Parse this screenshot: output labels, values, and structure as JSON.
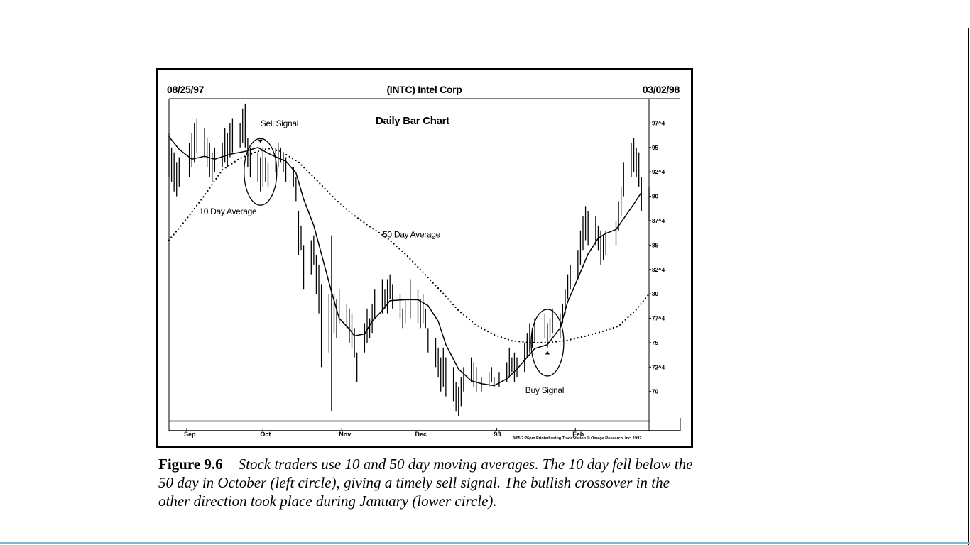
{
  "header": {
    "date_left": "08/25/97",
    "title": "(INTC) Intel Corp",
    "date_right": "03/02/98"
  },
  "caption": {
    "figure_label": "Figure 9.6",
    "text": "Stock traders use 10  and 50 day moving averages. The 10 day fell below the 50 day in October (left circle), giving a timely sell signal. The bullish crossover in the other direction took place during January (lower circle)."
  },
  "colors": {
    "ink": "#000000",
    "background": "#ffffff",
    "bottom_rule": "#7fb8cf"
  },
  "chart_data": {
    "type": "bar",
    "subtitle": "Daily Bar Chart",
    "x_tick_labels": [
      "Sep",
      "Oct",
      "Nov",
      "Dec",
      "98",
      "Feb"
    ],
    "y_tick_labels": [
      "97^4",
      "95",
      "92^4",
      "90",
      "87^4",
      "85",
      "82^4",
      "80",
      "77^4",
      "75",
      "72^4",
      "70"
    ],
    "y_ticks": [
      97.5,
      95,
      92.5,
      90,
      87.5,
      85,
      82.5,
      80,
      77.5,
      75,
      72.5,
      70
    ],
    "ylim": [
      67,
      100
    ],
    "x_range": [
      "1997-08-25",
      "1998-03-02"
    ],
    "grid": false,
    "footer_note": "3/05  2:26pm Printed using TradeStation ® Omega Research, Inc. 1997",
    "annotations": [
      {
        "text": "Sell Signal",
        "date": "1997-09-30",
        "price": 96.5
      },
      {
        "text": "Buy Signal",
        "date": "1998-01-19",
        "price": 71.5
      },
      {
        "text": "10 Day Average",
        "date": "1997-09-12",
        "price": 88.5
      },
      {
        "text": "50 Day Average",
        "date": "1997-11-25",
        "price": 86.0
      }
    ],
    "circles": [
      {
        "label": "sell-circle",
        "date": "1997-09-30",
        "price": 92.5
      },
      {
        "label": "buy-circle",
        "date": "1998-01-21",
        "price": 75.0
      }
    ],
    "series": [
      {
        "name": "10 Day Average",
        "style": "solid",
        "points": [
          [
            "1997-08-25",
            96.1
          ],
          [
            "1997-08-29",
            94.8
          ],
          [
            "1997-09-03",
            93.8
          ],
          [
            "1997-09-08",
            94.1
          ],
          [
            "1997-09-12",
            93.8
          ],
          [
            "1997-09-18",
            94.3
          ],
          [
            "1997-09-24",
            94.6
          ],
          [
            "1997-09-29",
            95.0
          ],
          [
            "1997-10-03",
            94.4
          ],
          [
            "1997-10-08",
            93.8
          ],
          [
            "1997-10-10",
            93.6
          ],
          [
            "1997-10-14",
            92.4
          ],
          [
            "1997-10-17",
            89.7
          ],
          [
            "1997-10-21",
            87.0
          ],
          [
            "1997-10-24",
            84.1
          ],
          [
            "1997-10-28",
            80.2
          ],
          [
            "1997-10-31",
            77.5
          ],
          [
            "1997-11-04",
            76.4
          ],
          [
            "1997-11-06",
            75.7
          ],
          [
            "1997-11-10",
            75.9
          ],
          [
            "1997-11-13",
            77.2
          ],
          [
            "1997-11-17",
            78.3
          ],
          [
            "1997-11-20",
            79.3
          ],
          [
            "1997-11-26",
            79.4
          ],
          [
            "1997-12-01",
            79.4
          ],
          [
            "1997-12-05",
            78.8
          ],
          [
            "1997-12-09",
            77.2
          ],
          [
            "1997-12-12",
            74.8
          ],
          [
            "1997-12-17",
            72.3
          ],
          [
            "1997-12-22",
            71.1
          ],
          [
            "1997-12-26",
            70.8
          ],
          [
            "1997-12-31",
            70.6
          ],
          [
            "1998-01-05",
            71.3
          ],
          [
            "1998-01-09",
            72.3
          ],
          [
            "1998-01-13",
            73.5
          ],
          [
            "1998-01-16",
            74.4
          ],
          [
            "1998-01-21",
            74.8
          ],
          [
            "1998-01-26",
            76.5
          ],
          [
            "1998-01-29",
            79.2
          ],
          [
            "1998-02-02",
            81.6
          ],
          [
            "1998-02-06",
            84.1
          ],
          [
            "1998-02-10",
            85.7
          ],
          [
            "1998-02-13",
            86.2
          ],
          [
            "1998-02-17",
            86.6
          ],
          [
            "1998-02-20",
            87.7
          ],
          [
            "1998-02-24",
            89.2
          ],
          [
            "1998-02-27",
            90.4
          ]
        ]
      },
      {
        "name": "50 Day Average",
        "style": "dotted",
        "points": [
          [
            "1997-08-25",
            85.5
          ],
          [
            "1997-09-01",
            87.7
          ],
          [
            "1997-09-08",
            90.1
          ],
          [
            "1997-09-15",
            92.7
          ],
          [
            "1997-09-22",
            93.9
          ],
          [
            "1997-09-29",
            94.6
          ],
          [
            "1997-10-03",
            94.9
          ],
          [
            "1997-10-08",
            94.6
          ],
          [
            "1997-10-15",
            93.5
          ],
          [
            "1997-10-22",
            91.7
          ],
          [
            "1997-10-29",
            89.8
          ],
          [
            "1997-11-05",
            88.2
          ],
          [
            "1997-11-12",
            86.9
          ],
          [
            "1997-11-19",
            85.7
          ],
          [
            "1997-11-26",
            84.1
          ],
          [
            "1997-12-03",
            82.2
          ],
          [
            "1997-12-10",
            80.3
          ],
          [
            "1997-12-17",
            78.3
          ],
          [
            "1997-12-24",
            76.8
          ],
          [
            "1997-12-31",
            75.8
          ],
          [
            "1998-01-07",
            75.2
          ],
          [
            "1998-01-14",
            75.0
          ],
          [
            "1998-01-21",
            75.0
          ],
          [
            "1998-01-28",
            75.2
          ],
          [
            "1998-02-04",
            75.6
          ],
          [
            "1998-02-11",
            76.1
          ],
          [
            "1998-02-18",
            76.7
          ],
          [
            "1998-02-25",
            78.4
          ],
          [
            "1998-03-02",
            80.0
          ]
        ]
      }
    ],
    "bars": [
      [
        "1997-08-25",
        96.5,
        92.0
      ],
      [
        "1997-08-26",
        95.0,
        91.5
      ],
      [
        "1997-08-27",
        94.5,
        90.5
      ],
      [
        "1997-08-28",
        93.5,
        90.0
      ],
      [
        "1997-08-29",
        94.0,
        91.0
      ],
      [
        "1997-09-02",
        95.5,
        92.0
      ],
      [
        "1997-09-03",
        96.5,
        93.0
      ],
      [
        "1997-09-04",
        97.5,
        93.5
      ],
      [
        "1997-09-05",
        98.0,
        94.5
      ],
      [
        "1997-09-08",
        97.0,
        94.0
      ],
      [
        "1997-09-09",
        96.0,
        93.0
      ],
      [
        "1997-09-10",
        95.5,
        92.0
      ],
      [
        "1997-09-11",
        94.5,
        91.5
      ],
      [
        "1997-09-12",
        95.0,
        92.5
      ],
      [
        "1997-09-15",
        95.5,
        93.0
      ],
      [
        "1997-09-16",
        97.0,
        93.5
      ],
      [
        "1997-09-17",
        96.5,
        93.0
      ],
      [
        "1997-09-18",
        97.5,
        94.0
      ],
      [
        "1997-09-19",
        98.0,
        94.5
      ],
      [
        "1997-09-22",
        97.5,
        95.0
      ],
      [
        "1997-09-23",
        99.0,
        95.5
      ],
      [
        "1997-09-24",
        99.5,
        95.0
      ],
      [
        "1997-09-25",
        96.0,
        93.0
      ],
      [
        "1997-09-26",
        95.0,
        92.0
      ],
      [
        "1997-09-29",
        94.5,
        91.5
      ],
      [
        "1997-09-30",
        94.0,
        90.5
      ],
      [
        "1997-10-01",
        95.0,
        91.0
      ],
      [
        "1997-10-02",
        94.0,
        91.5
      ],
      [
        "1997-10-03",
        93.5,
        91.0
      ],
      [
        "1997-10-06",
        95.0,
        92.5
      ],
      [
        "1997-10-07",
        95.5,
        93.0
      ],
      [
        "1997-10-08",
        95.0,
        93.5
      ],
      [
        "1997-10-09",
        94.5,
        92.5
      ],
      [
        "1997-10-10",
        94.0,
        91.5
      ],
      [
        "1997-10-13",
        93.0,
        91.0
      ],
      [
        "1997-10-14",
        92.0,
        89.5
      ],
      [
        "1997-10-15",
        88.5,
        84.0
      ],
      [
        "1997-10-16",
        87.0,
        84.5
      ],
      [
        "1997-10-17",
        85.0,
        80.5
      ],
      [
        "1997-10-20",
        85.5,
        82.0
      ],
      [
        "1997-10-21",
        86.0,
        83.0
      ],
      [
        "1997-10-22",
        84.0,
        80.0
      ],
      [
        "1997-10-23",
        83.0,
        78.0
      ],
      [
        "1997-10-24",
        81.0,
        72.5
      ],
      [
        "1997-10-27",
        80.0,
        74.0
      ],
      [
        "1997-10-28",
        86.0,
        68.0
      ],
      [
        "1997-10-29",
        80.0,
        76.0
      ],
      [
        "1997-10-30",
        79.5,
        75.5
      ],
      [
        "1997-10-31",
        80.5,
        77.0
      ],
      [
        "1997-11-03",
        79.0,
        76.5
      ],
      [
        "1997-11-04",
        78.5,
        75.0
      ],
      [
        "1997-11-05",
        78.0,
        74.5
      ],
      [
        "1997-11-06",
        76.5,
        73.5
      ],
      [
        "1997-11-07",
        74.0,
        71.0
      ],
      [
        "1997-11-10",
        77.0,
        74.0
      ],
      [
        "1997-11-11",
        78.5,
        75.0
      ],
      [
        "1997-11-12",
        77.5,
        75.5
      ],
      [
        "1997-11-13",
        79.0,
        76.0
      ],
      [
        "1997-11-14",
        80.5,
        77.5
      ],
      [
        "1997-11-17",
        81.5,
        78.0
      ],
      [
        "1997-11-18",
        80.5,
        78.5
      ],
      [
        "1997-11-19",
        81.5,
        78.0
      ],
      [
        "1997-11-20",
        82.0,
        79.5
      ],
      [
        "1997-11-21",
        81.0,
        78.5
      ],
      [
        "1997-11-24",
        80.0,
        77.5
      ],
      [
        "1997-11-25",
        78.5,
        76.5
      ],
      [
        "1997-11-26",
        79.5,
        77.0
      ],
      [
        "1997-11-28",
        81.5,
        77.5
      ],
      [
        "1997-12-01",
        80.5,
        77.0
      ],
      [
        "1997-12-02",
        79.5,
        76.5
      ],
      [
        "1997-12-03",
        80.0,
        77.0
      ],
      [
        "1997-12-04",
        78.5,
        76.5
      ],
      [
        "1997-12-05",
        76.5,
        74.0
      ],
      [
        "1997-12-08",
        75.5,
        72.5
      ],
      [
        "1997-12-09",
        74.5,
        71.5
      ],
      [
        "1997-12-10",
        73.5,
        70.0
      ],
      [
        "1997-12-11",
        74.5,
        70.5
      ],
      [
        "1997-12-12",
        73.5,
        69.5
      ],
      [
        "1997-12-15",
        72.5,
        69.0
      ],
      [
        "1997-12-16",
        71.0,
        68.0
      ],
      [
        "1997-12-17",
        70.5,
        67.5
      ],
      [
        "1997-12-18",
        71.5,
        68.5
      ],
      [
        "1997-12-19",
        72.5,
        70.0
      ],
      [
        "1997-12-22",
        73.5,
        71.0
      ],
      [
        "1997-12-23",
        73.0,
        70.5
      ],
      [
        "1997-12-24",
        72.5,
        70.0
      ],
      [
        "1997-12-26",
        71.5,
        70.0
      ],
      [
        "1997-12-29",
        72.0,
        70.5
      ],
      [
        "1997-12-30",
        72.5,
        71.0
      ],
      [
        "1997-12-31",
        71.5,
        70.5
      ],
      [
        "1998-01-02",
        72.0,
        70.5
      ],
      [
        "1998-01-05",
        73.0,
        71.0
      ],
      [
        "1998-01-06",
        74.5,
        71.5
      ],
      [
        "1998-01-07",
        73.5,
        72.0
      ],
      [
        "1998-01-08",
        74.0,
        71.0
      ],
      [
        "1998-01-09",
        73.5,
        71.5
      ],
      [
        "1998-01-12",
        75.0,
        72.0
      ],
      [
        "1998-01-13",
        76.0,
        73.5
      ],
      [
        "1998-01-14",
        77.0,
        74.0
      ],
      [
        "1998-01-15",
        76.5,
        74.5
      ],
      [
        "1998-01-16",
        77.5,
        75.0
      ],
      [
        "1998-01-20",
        78.0,
        75.5
      ],
      [
        "1998-01-21",
        77.0,
        74.5
      ],
      [
        "1998-01-22",
        77.5,
        75.5
      ],
      [
        "1998-01-23",
        78.5,
        76.0
      ],
      [
        "1998-01-26",
        78.0,
        75.5
      ],
      [
        "1998-01-27",
        79.0,
        77.0
      ],
      [
        "1998-01-28",
        80.5,
        78.0
      ],
      [
        "1998-01-29",
        82.0,
        79.5
      ],
      [
        "1998-01-30",
        83.0,
        80.5
      ],
      [
        "1998-02-02",
        84.5,
        81.5
      ],
      [
        "1998-02-03",
        86.5,
        83.0
      ],
      [
        "1998-02-04",
        88.0,
        84.5
      ],
      [
        "1998-02-05",
        89.0,
        85.5
      ],
      [
        "1998-02-06",
        88.5,
        85.0
      ],
      [
        "1998-02-09",
        88.0,
        85.0
      ],
      [
        "1998-02-10",
        87.0,
        84.5
      ],
      [
        "1998-02-11",
        86.5,
        83.0
      ],
      [
        "1998-02-12",
        86.0,
        83.5
      ],
      [
        "1998-02-13",
        86.5,
        84.0
      ],
      [
        "1998-02-17",
        87.5,
        85.0
      ],
      [
        "1998-02-18",
        89.5,
        86.5
      ],
      [
        "1998-02-19",
        91.0,
        88.0
      ],
      [
        "1998-02-20",
        93.5,
        90.0
      ],
      [
        "1998-02-23",
        95.5,
        92.0
      ],
      [
        "1998-02-24",
        96.0,
        92.5
      ],
      [
        "1998-02-25",
        95.0,
        92.0
      ],
      [
        "1998-02-26",
        94.5,
        91.0
      ],
      [
        "1998-02-27",
        92.0,
        88.5
      ],
      [
        "1998-03-02",
        91.0,
        87.5
      ]
    ]
  }
}
